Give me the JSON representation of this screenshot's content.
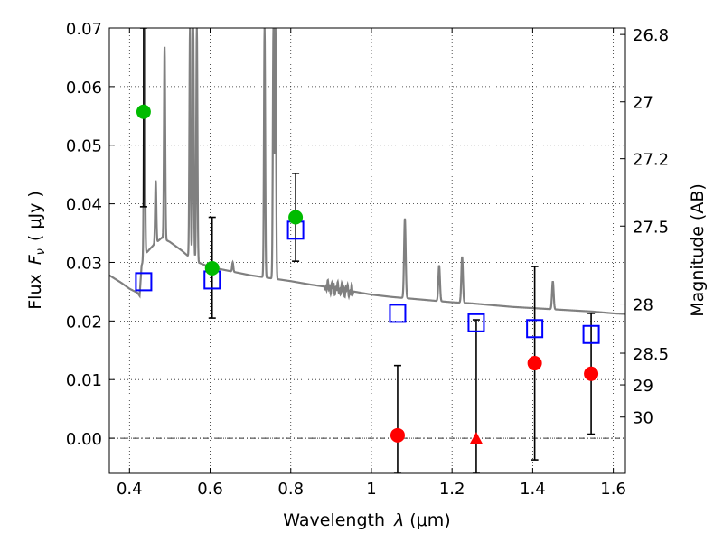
{
  "chart_data": {
    "type": "scatter",
    "xlabel": "Wavelength",
    "xlabel_symbol": "λ",
    "xlabel_unit": "(μm)",
    "ylabel": "Flux",
    "ylabel_symbol": "F",
    "ylabel_subscript": "ν",
    "ylabel_unit": "( μJy )",
    "ylabel_right": "Magnitude (AB)",
    "xlim": [
      0.35,
      1.63
    ],
    "ylim": [
      -0.006,
      0.07
    ],
    "grid": true,
    "x_ticks": [
      {
        "value": 0.4,
        "label": "0.4"
      },
      {
        "value": 0.6,
        "label": "0.6"
      },
      {
        "value": 0.8,
        "label": "0.8"
      },
      {
        "value": 1.0,
        "label": "1"
      },
      {
        "value": 1.2,
        "label": "1.2"
      },
      {
        "value": 1.4,
        "label": "1.4"
      },
      {
        "value": 1.6,
        "label": "1.6"
      }
    ],
    "y_ticks": [
      {
        "value": 0.0,
        "label": "0.00"
      },
      {
        "value": 0.01,
        "label": "0.01"
      },
      {
        "value": 0.02,
        "label": "0.02"
      },
      {
        "value": 0.03,
        "label": "0.03"
      },
      {
        "value": 0.04,
        "label": "0.04"
      },
      {
        "value": 0.05,
        "label": "0.05"
      },
      {
        "value": 0.06,
        "label": "0.06"
      },
      {
        "value": 0.07,
        "label": "0.07"
      }
    ],
    "right_ticks": [
      {
        "label": "26.8",
        "flux": 0.0689
      },
      {
        "label": "27",
        "flux": 0.0574
      },
      {
        "label": "27.2",
        "flux": 0.0477
      },
      {
        "label": "27.5",
        "flux": 0.0362
      },
      {
        "label": "28",
        "flux": 0.0229
      },
      {
        "label": "28.5",
        "flux": 0.0145
      },
      {
        "label": "29",
        "flux": 0.0091
      },
      {
        "label": "30",
        "flux": 0.0036
      }
    ],
    "colors": {
      "template": "#808080",
      "model_box": "#0000ff",
      "detection": "#00bb00",
      "nondetection": "#ff0000",
      "errorbar": "#000000"
    },
    "template_continuum": [
      [
        0.35,
        0.0278
      ],
      [
        0.38,
        0.0265
      ],
      [
        0.4,
        0.0255
      ],
      [
        0.42,
        0.0248
      ],
      [
        0.425,
        0.0243
      ],
      [
        0.43,
        0.0295
      ],
      [
        0.44,
        0.0315
      ],
      [
        0.46,
        0.033
      ],
      [
        0.48,
        0.0342
      ],
      [
        0.5,
        0.0335
      ],
      [
        0.53,
        0.032
      ],
      [
        0.55,
        0.0308
      ],
      [
        0.57,
        0.03
      ],
      [
        0.6,
        0.0292
      ],
      [
        0.65,
        0.0285
      ],
      [
        0.7,
        0.0278
      ],
      [
        0.75,
        0.0273
      ],
      [
        0.8,
        0.0268
      ],
      [
        0.85,
        0.0262
      ],
      [
        0.9,
        0.0257
      ],
      [
        0.95,
        0.0251
      ],
      [
        1.0,
        0.0245
      ],
      [
        1.05,
        0.0241
      ],
      [
        1.1,
        0.0238
      ],
      [
        1.15,
        0.0235
      ],
      [
        1.2,
        0.0232
      ],
      [
        1.25,
        0.023
      ],
      [
        1.3,
        0.0227
      ],
      [
        1.35,
        0.0224
      ],
      [
        1.4,
        0.0222
      ],
      [
        1.45,
        0.022
      ],
      [
        1.5,
        0.0218
      ],
      [
        1.55,
        0.0216
      ],
      [
        1.6,
        0.0213
      ],
      [
        1.63,
        0.0212
      ]
    ],
    "template_lines": [
      {
        "x": 0.437,
        "peak": 0.07,
        "width": 0.003
      },
      {
        "x": 0.465,
        "peak": 0.044,
        "width": 0.003
      },
      {
        "x": 0.487,
        "peak": 0.0668,
        "width": 0.003
      },
      {
        "x": 0.55,
        "peak": 0.07,
        "width": 0.003
      },
      {
        "x": 0.558,
        "peak": 0.07,
        "width": 0.003
      },
      {
        "x": 0.567,
        "peak": 0.07,
        "width": 0.003
      },
      {
        "x": 0.656,
        "peak": 0.03,
        "width": 0.003
      },
      {
        "x": 0.735,
        "peak": 0.07,
        "width": 0.003
      },
      {
        "x": 0.757,
        "peak": 0.07,
        "width": 0.003
      },
      {
        "x": 0.762,
        "peak": 0.07,
        "width": 0.003
      },
      {
        "x": 1.083,
        "peak": 0.0375,
        "width": 0.004
      },
      {
        "x": 1.168,
        "peak": 0.0295,
        "width": 0.004
      },
      {
        "x": 1.225,
        "peak": 0.031,
        "width": 0.004
      },
      {
        "x": 1.45,
        "peak": 0.0268,
        "width": 0.004
      }
    ],
    "model_points": [
      {
        "x": 0.435,
        "y": 0.0267
      },
      {
        "x": 0.605,
        "y": 0.027
      },
      {
        "x": 0.812,
        "y": 0.0355
      },
      {
        "x": 1.065,
        "y": 0.0213
      },
      {
        "x": 1.26,
        "y": 0.0197
      },
      {
        "x": 1.405,
        "y": 0.0187
      },
      {
        "x": 1.545,
        "y": 0.0177
      }
    ],
    "detections": [
      {
        "x": 0.435,
        "y": 0.0557,
        "yerr_low": 0.0395,
        "yerr_high": 0.07
      },
      {
        "x": 0.605,
        "y": 0.029,
        "yerr_low": 0.0205,
        "yerr_high": 0.0377
      },
      {
        "x": 0.812,
        "y": 0.0377,
        "yerr_low": 0.0302,
        "yerr_high": 0.0452
      }
    ],
    "nondetections": [
      {
        "x": 1.065,
        "y": 0.0005,
        "marker": "circle",
        "yerr_low": -0.006,
        "yerr_high": 0.0124
      },
      {
        "x": 1.26,
        "y": 0.0,
        "marker": "triangle",
        "yerr_low": -0.006,
        "yerr_high": 0.0202
      },
      {
        "x": 1.405,
        "y": 0.0128,
        "marker": "circle",
        "yerr_low": -0.0037,
        "yerr_high": 0.0293
      },
      {
        "x": 1.545,
        "y": 0.011,
        "marker": "circle",
        "yerr_low": 0.0007,
        "yerr_high": 0.0213
      }
    ]
  }
}
